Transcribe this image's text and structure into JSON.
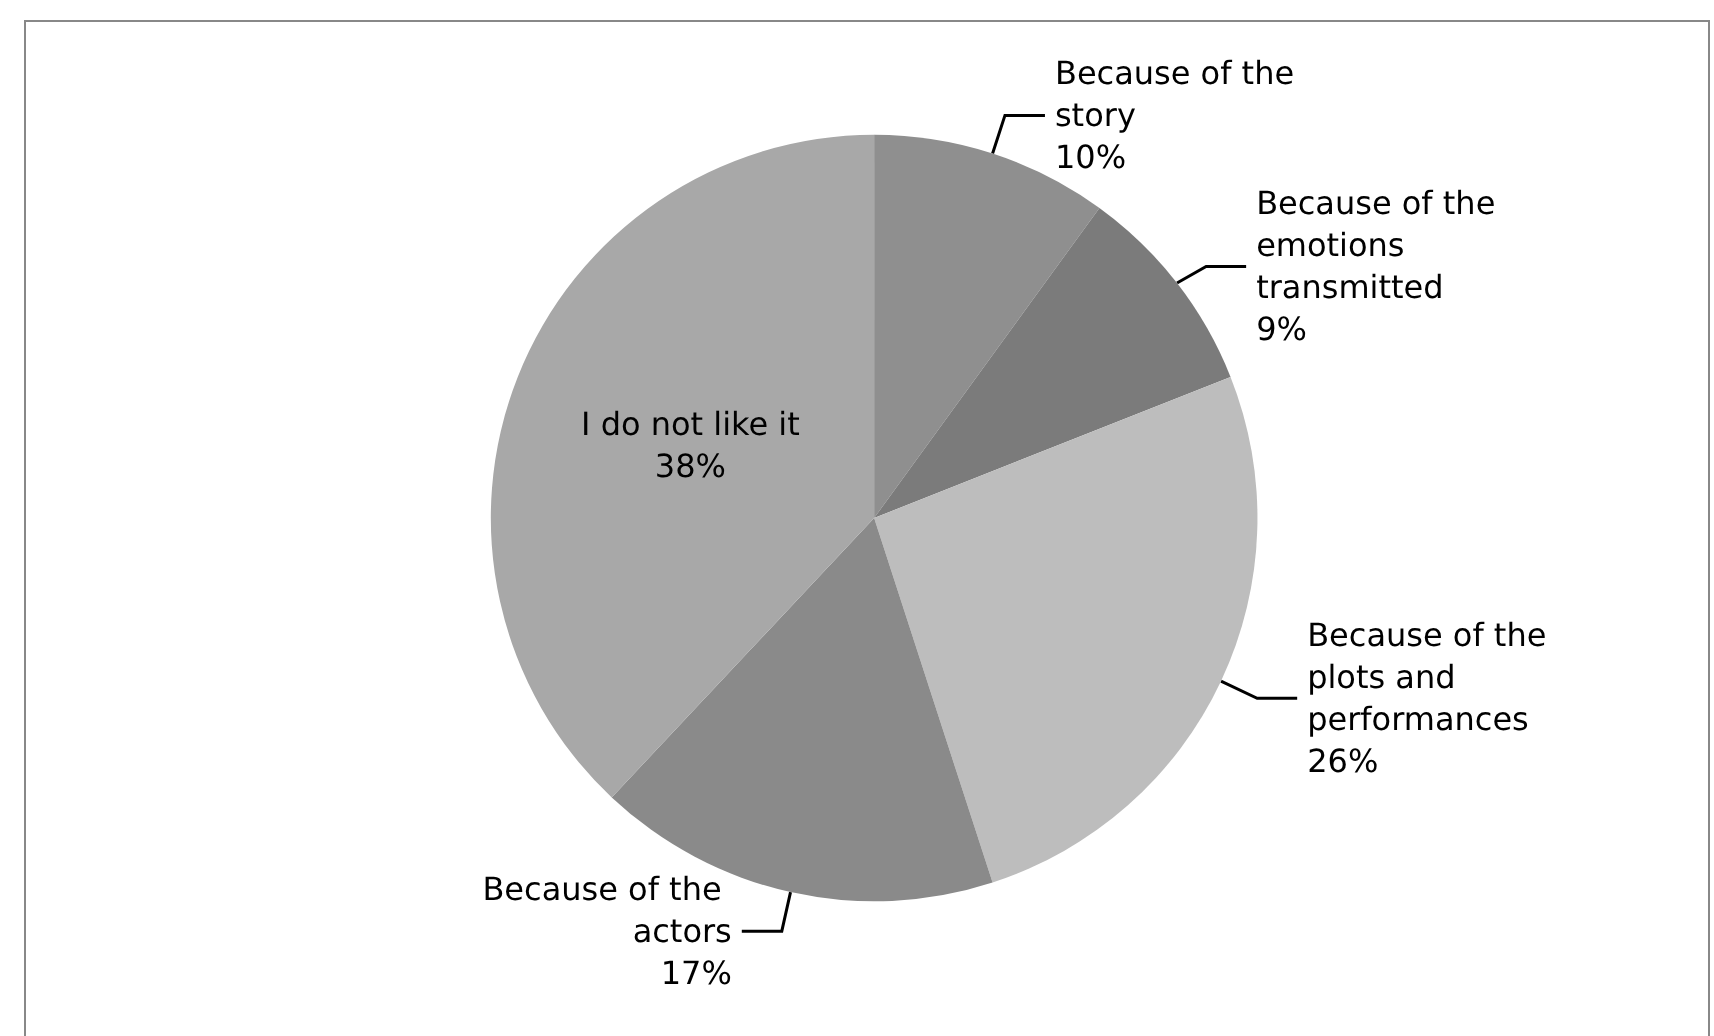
{
  "chart_data": {
    "type": "pie",
    "categories": [
      "Because of the story",
      "Because of the emotions transmitted",
      "Because of the plots and performances",
      "Because of the actors",
      "I do not like it"
    ],
    "values": [
      10,
      9,
      26,
      17,
      38
    ],
    "value_labels": [
      "10%",
      "9%",
      "26%",
      "17%",
      "38%"
    ],
    "colors": [
      "#8f8f8f",
      "#7b7b7b",
      "#bdbdbd",
      "#8a8a8a",
      "#a8a8a8"
    ],
    "legend": false
  }
}
